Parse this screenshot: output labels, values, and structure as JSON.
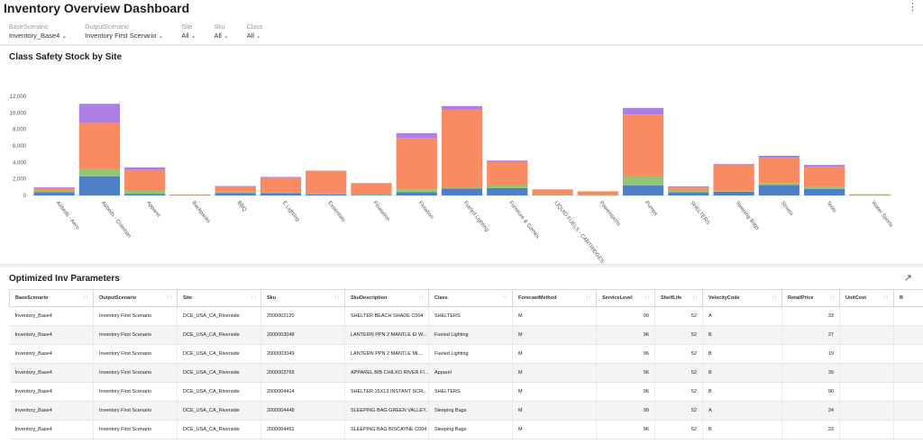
{
  "header": {
    "title": "Inventory Overview Dashboard",
    "menu_icon": "kebab-menu-icon",
    "filters": [
      {
        "label": "BaseScenario",
        "value": "Inventory_Base4"
      },
      {
        "label": "OutputScenario",
        "value": "Inventory First Scenario"
      },
      {
        "label": "Site",
        "value": "All"
      },
      {
        "label": "Sku",
        "value": "All"
      },
      {
        "label": "Class",
        "value": "All"
      }
    ]
  },
  "chart": {
    "title": "Class Safety Stock by Site"
  },
  "chart_data": {
    "type": "bar",
    "stacked": true,
    "categories": [
      "Airbeds - Aero",
      "Airbeds - Coleman",
      "Apparel",
      "Backpacks",
      "BBQ",
      "E Lighting",
      "Essentials",
      "Floatation",
      "Flotation",
      "Fueled Lighting",
      "Furniture & Games",
      "LIQUID FUELS - CARTRIDGES",
      "Powersports",
      "Pumps",
      "SHELTERS",
      "Sleeping Bags",
      "Stoves",
      "Tents",
      "Water Sports"
    ],
    "series": [
      {
        "color": "#4f7fc6",
        "values": [
          400,
          2300,
          200,
          60,
          300,
          300,
          150,
          50,
          400,
          850,
          900,
          60,
          40,
          1200,
          400,
          450,
          1250,
          800,
          50
        ]
      },
      {
        "color": "#93c572",
        "values": [
          200,
          900,
          400,
          20,
          150,
          50,
          50,
          50,
          350,
          80,
          300,
          20,
          20,
          1100,
          150,
          50,
          250,
          200,
          20
        ]
      },
      {
        "color": "#f98b62",
        "values": [
          300,
          5600,
          2500,
          20,
          650,
          1850,
          2750,
          1400,
          6200,
          9450,
          2850,
          650,
          440,
          7500,
          400,
          3250,
          3050,
          2450,
          80
        ]
      },
      {
        "color": "#ab7fe3",
        "values": [
          100,
          2300,
          300,
          0,
          50,
          50,
          40,
          0,
          600,
          450,
          180,
          0,
          0,
          800,
          150,
          60,
          250,
          250,
          0
        ]
      }
    ],
    "ylim": [
      0,
      12000
    ],
    "yticks": [
      0,
      2000,
      4000,
      6000,
      8000,
      10000,
      12000
    ],
    "ytick_labels": [
      "0",
      "2,000",
      "4,000",
      "6,000",
      "8,000",
      "10,000",
      "12,000"
    ],
    "grid": false
  },
  "table": {
    "title": "Optimized Inv Parameters",
    "expand_icon": "expand-arrow-icon",
    "columns": [
      "BaseScenario",
      "OutputScenario",
      "Site",
      "Sku",
      "SkuDescription",
      "Class",
      "ForecastMethod",
      "ServiceLevel",
      "ShelfLife",
      "VelocityCode",
      "RetailPrice",
      "UnitCost",
      "R"
    ],
    "rows": [
      [
        "Inventory_Base4",
        "Inventory First Scenario",
        "DCE_USA_CA_Riverside",
        "2000002120",
        "SHELTER BEACH SHADE C004",
        "SHELTERS",
        "M",
        "99",
        "52",
        "A",
        "33",
        "",
        ""
      ],
      [
        "Inventory_Base4",
        "Inventory First Scenario",
        "DCE_USA_CA_Riverside",
        "2000003048",
        "LANTERN PPN 2 MANTLE EI W...",
        "Fueled Lighting",
        "M",
        "96",
        "52",
        "B",
        "27",
        "",
        ""
      ],
      [
        "Inventory_Base4",
        "Inventory First Scenario",
        "DCE_USA_CA_Riverside",
        "2000003049",
        "LANTERN PPN 2 MANTLE ML...",
        "Fueled Lighting",
        "M",
        "96",
        "52",
        "B",
        "19",
        "",
        ""
      ],
      [
        "Inventory_Base4",
        "Inventory First Scenario",
        "DCE_USA_CA_Riverside",
        "2000003769",
        "APPAREL BIB CHILKO RIVER FI...",
        "Apparel",
        "M",
        "96",
        "52",
        "B",
        "39",
        "",
        ""
      ],
      [
        "Inventory_Base4",
        "Inventory First Scenario",
        "DCE_USA_CA_Riverside",
        "2000004414",
        "SHELTER 15X13 INSTANT SCR...",
        "SHELTERS",
        "M",
        "96",
        "52",
        "B",
        "90",
        "",
        ""
      ],
      [
        "Inventory_Base4",
        "Inventory First Scenario",
        "DCE_USA_CA_Riverside",
        "2000004448",
        "SLEEPING BAG GREEN VALLEY...",
        "Sleeping Bags",
        "M",
        "99",
        "52",
        "A",
        "24",
        "",
        ""
      ],
      [
        "Inventory_Base4",
        "Inventory First Scenario",
        "DCE_USA_CA_Riverside",
        "2000004451",
        "SLEEPING BAG BISCAYNE C004",
        "Sleeping Bags",
        "M",
        "96",
        "52",
        "B",
        "23",
        "",
        ""
      ]
    ],
    "numeric_columns": [
      7,
      8,
      10
    ]
  }
}
